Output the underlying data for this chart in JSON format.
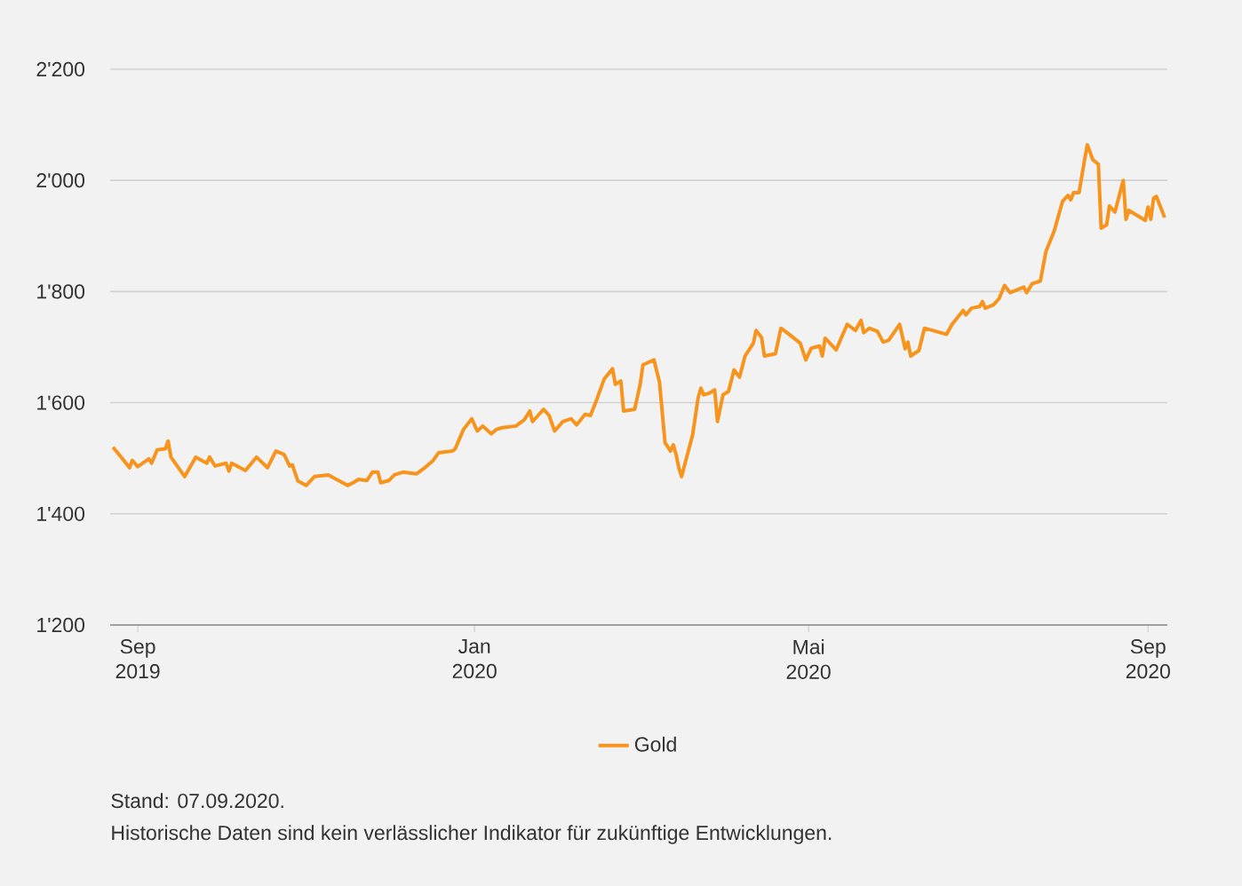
{
  "chart_data": {
    "type": "line",
    "x": [
      "2019-08-23",
      "2019-08-26",
      "2019-08-29",
      "2019-08-30",
      "2019-09-01",
      "2019-09-05",
      "2019-09-06",
      "2019-09-08",
      "2019-09-11",
      "2019-09-12",
      "2019-09-13",
      "2019-09-18",
      "2019-09-22",
      "2019-09-26",
      "2019-09-27",
      "2019-09-29",
      "2019-10-03",
      "2019-10-04",
      "2019-10-05",
      "2019-10-10",
      "2019-10-14",
      "2019-10-18",
      "2019-10-21",
      "2019-10-24",
      "2019-10-26",
      "2019-10-27",
      "2019-10-29",
      "2019-11-01",
      "2019-11-04",
      "2019-11-09",
      "2019-11-12",
      "2019-11-16",
      "2019-11-18",
      "2019-11-20",
      "2019-11-23",
      "2019-11-25",
      "2019-11-27",
      "2019-11-28",
      "2019-12-01",
      "2019-12-03",
      "2019-12-06",
      "2019-12-11",
      "2019-12-14",
      "2019-12-17",
      "2019-12-19",
      "2019-12-24",
      "2019-12-25",
      "2019-12-28",
      "2019-12-31",
      "2020-01-02",
      "2020-01-04",
      "2020-01-07",
      "2020-01-09",
      "2020-01-11",
      "2020-01-16",
      "2020-01-19",
      "2020-01-21",
      "2020-01-22",
      "2020-01-24",
      "2020-01-26",
      "2020-01-28",
      "2020-01-30",
      "2020-02-02",
      "2020-02-05",
      "2020-02-07",
      "2020-02-10",
      "2020-02-12",
      "2020-02-14",
      "2020-02-17",
      "2020-02-20",
      "2020-02-21",
      "2020-02-23",
      "2020-02-24",
      "2020-02-28",
      "2020-03-01",
      "2020-03-02",
      "2020-03-06",
      "2020-03-08",
      "2020-03-10",
      "2020-03-12",
      "2020-03-13",
      "2020-03-14",
      "2020-03-15",
      "2020-03-16",
      "2020-03-20",
      "2020-03-22",
      "2020-03-23",
      "2020-03-24",
      "2020-03-26",
      "2020-03-28",
      "2020-03-29",
      "2020-03-31",
      "2020-04-02",
      "2020-04-04",
      "2020-04-06",
      "2020-04-08",
      "2020-04-11",
      "2020-04-12",
      "2020-04-14",
      "2020-04-15",
      "2020-04-19",
      "2020-04-21",
      "2020-04-24",
      "2020-04-28",
      "2020-04-30",
      "2020-05-02",
      "2020-05-05",
      "2020-05-06",
      "2020-05-07",
      "2020-05-11",
      "2020-05-15",
      "2020-05-18",
      "2020-05-20",
      "2020-05-21",
      "2020-05-23",
      "2020-05-26",
      "2020-05-28",
      "2020-05-30",
      "2020-06-03",
      "2020-06-05",
      "2020-06-06",
      "2020-06-07",
      "2020-06-10",
      "2020-06-12",
      "2020-06-20",
      "2020-06-22",
      "2020-06-26",
      "2020-06-27",
      "2020-06-29",
      "2020-07-02",
      "2020-07-03",
      "2020-07-04",
      "2020-07-07",
      "2020-07-09",
      "2020-07-11",
      "2020-07-13",
      "2020-07-18",
      "2020-07-19",
      "2020-07-21",
      "2020-07-24",
      "2020-07-26",
      "2020-07-29",
      "2020-08-01",
      "2020-08-03",
      "2020-08-04",
      "2020-08-05",
      "2020-08-07",
      "2020-08-09",
      "2020-08-10",
      "2020-08-12",
      "2020-08-14",
      "2020-08-15",
      "2020-08-17",
      "2020-08-18",
      "2020-08-20",
      "2020-08-23",
      "2020-08-24",
      "2020-08-25",
      "2020-08-31",
      "2020-09-01",
      "2020-09-02",
      "2020-09-03",
      "2020-09-04",
      "2020-09-06",
      "2020-09-07"
    ],
    "series": [
      {
        "name": "Gold",
        "color": "#f7941d",
        "values": [
          1520,
          1502,
          1483,
          1496,
          1485,
          1499,
          1491,
          1515,
          1517,
          1531,
          1502,
          1467,
          1502,
          1491,
          1502,
          1486,
          1491,
          1477,
          1491,
          1478,
          1502,
          1483,
          1513,
          1507,
          1486,
          1488,
          1459,
          1451,
          1467,
          1470,
          1462,
          1451,
          1456,
          1462,
          1460,
          1475,
          1475,
          1456,
          1460,
          1470,
          1475,
          1472,
          1483,
          1496,
          1510,
          1513,
          1517,
          1552,
          1571,
          1549,
          1558,
          1544,
          1552,
          1555,
          1558,
          1569,
          1585,
          1566,
          1577,
          1588,
          1577,
          1549,
          1566,
          1571,
          1560,
          1579,
          1577,
          1602,
          1643,
          1661,
          1633,
          1639,
          1585,
          1588,
          1633,
          1668,
          1677,
          1637,
          1528,
          1513,
          1524,
          1507,
          1483,
          1467,
          1542,
          1609,
          1626,
          1614,
          1617,
          1623,
          1566,
          1614,
          1620,
          1659,
          1646,
          1684,
          1707,
          1730,
          1717,
          1684,
          1688,
          1734,
          1723,
          1707,
          1677,
          1698,
          1702,
          1684,
          1716,
          1695,
          1741,
          1730,
          1748,
          1726,
          1734,
          1728,
          1709,
          1712,
          1741,
          1697,
          1709,
          1684,
          1694,
          1734,
          1723,
          1741,
          1766,
          1758,
          1770,
          1773,
          1782,
          1770,
          1776,
          1787,
          1811,
          1798,
          1808,
          1798,
          1814,
          1819,
          1872,
          1909,
          1962,
          1973,
          1965,
          1978,
          1978,
          2037,
          2064,
          2037,
          2029,
          1914,
          1920,
          1954,
          1943,
          2000,
          1930,
          1946,
          1928,
          1952,
          1930,
          1968,
          1971,
          1946,
          1933
        ]
      }
    ],
    "xlim": [
      "2019-08-22",
      "2020-09-08"
    ],
    "xticks": [
      {
        "value": "2019-09-01",
        "label": "Sep 2019"
      },
      {
        "value": "2020-01-01",
        "label": "Jan 2020"
      },
      {
        "value": "2020-05-01",
        "label": "Mai 2020"
      },
      {
        "value": "2020-09-01",
        "label": "Sep 2020"
      }
    ],
    "ylim": [
      1200,
      2200
    ],
    "yticks": [
      {
        "value": 1200,
        "label": "1'200"
      },
      {
        "value": 1400,
        "label": "1'400"
      },
      {
        "value": 1600,
        "label": "1'600"
      },
      {
        "value": 1800,
        "label": "1'800"
      },
      {
        "value": 2000,
        "label": "2'000"
      },
      {
        "value": 2200,
        "label": "2'200"
      }
    ],
    "grid": "y",
    "legend": "bottom",
    "annotations": [
      "Stand: 07.09.2020.",
      "Historische Daten sind kein verlässlicher Indikator für zukünftige Entwicklungen."
    ]
  }
}
